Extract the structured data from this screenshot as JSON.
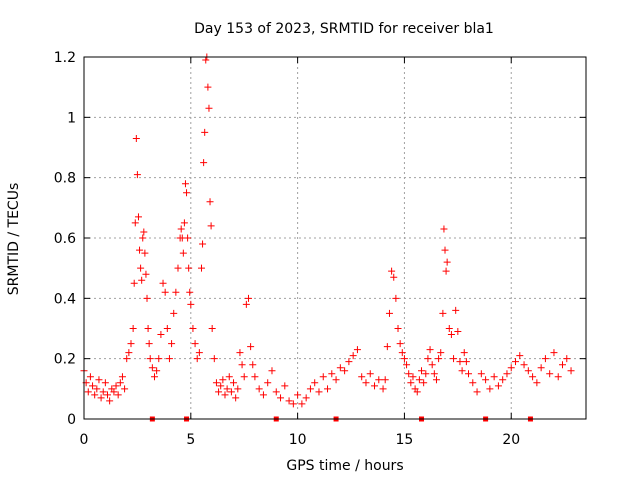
{
  "chart_data": {
    "type": "scatter",
    "title": "Day 153 of 2023, SRMTID for receiver bla1",
    "xlabel": "GPS time / hours",
    "ylabel": "SRMTID / TECUs",
    "xlim": [
      0,
      23.5
    ],
    "ylim": [
      0,
      1.2
    ],
    "xticks": [
      0,
      5,
      10,
      15,
      20
    ],
    "xtick_labels": [
      "0",
      "5",
      "10",
      "15",
      "20"
    ],
    "yticks": [
      0,
      0.2,
      0.4,
      0.6,
      0.8,
      1.0,
      1.2
    ],
    "ytick_labels": [
      "0",
      "0.2",
      "0.4",
      "0.6",
      "0.8",
      "1",
      "1.2"
    ],
    "grid": true,
    "marker": "+",
    "series": [
      {
        "name": "SRMTID",
        "color": "#ff0000",
        "x": [
          0.0,
          0.1,
          0.2,
          0.3,
          0.4,
          0.5,
          0.6,
          0.7,
          0.8,
          0.9,
          1.0,
          1.1,
          1.2,
          1.3,
          1.4,
          1.5,
          1.6,
          1.7,
          1.8,
          1.9,
          2.0,
          2.1,
          2.2,
          2.3,
          2.35,
          2.4,
          2.45,
          2.5,
          2.55,
          2.6,
          2.65,
          2.7,
          2.75,
          2.8,
          2.85,
          2.9,
          2.95,
          3.0,
          3.05,
          3.1,
          3.2,
          3.3,
          3.4,
          3.5,
          3.6,
          3.7,
          3.8,
          3.9,
          4.0,
          4.1,
          4.2,
          4.3,
          4.4,
          4.5,
          4.55,
          4.6,
          4.65,
          4.7,
          4.75,
          4.8,
          4.85,
          4.9,
          4.95,
          5.0,
          5.1,
          5.2,
          5.3,
          5.4,
          5.5,
          5.55,
          5.6,
          5.65,
          5.7,
          5.75,
          5.8,
          5.85,
          5.9,
          5.95,
          6.0,
          6.1,
          6.2,
          6.3,
          6.4,
          6.5,
          6.6,
          6.7,
          6.8,
          6.9,
          7.0,
          7.1,
          7.2,
          7.3,
          7.4,
          7.5,
          7.6,
          7.7,
          7.8,
          7.9,
          8.0,
          8.2,
          8.4,
          8.6,
          8.8,
          9.0,
          9.2,
          9.4,
          9.6,
          9.8,
          10.0,
          10.2,
          10.4,
          10.6,
          10.8,
          11.0,
          11.2,
          11.4,
          11.6,
          11.8,
          12.0,
          12.2,
          12.4,
          12.6,
          12.8,
          13.0,
          13.2,
          13.4,
          13.6,
          13.8,
          14.0,
          14.1,
          14.2,
          14.3,
          14.4,
          14.5,
          14.6,
          14.7,
          14.8,
          14.9,
          15.0,
          15.1,
          15.2,
          15.3,
          15.4,
          15.5,
          15.6,
          15.7,
          15.8,
          15.9,
          16.0,
          16.1,
          16.2,
          16.3,
          16.4,
          16.5,
          16.6,
          16.7,
          16.8,
          16.85,
          16.9,
          16.95,
          17.0,
          17.1,
          17.2,
          17.3,
          17.4,
          17.5,
          17.6,
          17.7,
          17.8,
          17.9,
          18.0,
          18.2,
          18.4,
          18.6,
          18.8,
          19.0,
          19.2,
          19.4,
          19.6,
          19.8,
          20.0,
          20.2,
          20.4,
          20.6,
          20.8,
          21.0,
          21.2,
          21.4,
          21.6,
          21.8,
          22.0,
          22.2,
          22.4,
          22.6,
          22.8
        ],
        "y": [
          0.16,
          0.12,
          0.09,
          0.14,
          0.11,
          0.08,
          0.1,
          0.13,
          0.07,
          0.09,
          0.12,
          0.08,
          0.06,
          0.1,
          0.09,
          0.11,
          0.08,
          0.12,
          0.14,
          0.1,
          0.2,
          0.22,
          0.25,
          0.3,
          0.45,
          0.65,
          0.93,
          0.81,
          0.67,
          0.56,
          0.5,
          0.46,
          0.6,
          0.62,
          0.55,
          0.48,
          0.4,
          0.3,
          0.25,
          0.2,
          0.17,
          0.14,
          0.16,
          0.2,
          0.28,
          0.45,
          0.42,
          0.3,
          0.2,
          0.25,
          0.35,
          0.42,
          0.5,
          0.6,
          0.63,
          0.6,
          0.55,
          0.65,
          0.78,
          0.75,
          0.6,
          0.5,
          0.42,
          0.38,
          0.3,
          0.25,
          0.2,
          0.22,
          0.5,
          0.58,
          0.85,
          0.95,
          1.19,
          1.2,
          1.1,
          1.03,
          0.72,
          0.64,
          0.3,
          0.2,
          0.12,
          0.09,
          0.11,
          0.13,
          0.08,
          0.1,
          0.14,
          0.09,
          0.12,
          0.07,
          0.1,
          0.22,
          0.18,
          0.14,
          0.38,
          0.4,
          0.24,
          0.18,
          0.14,
          0.1,
          0.08,
          0.12,
          0.16,
          0.09,
          0.07,
          0.11,
          0.06,
          0.05,
          0.08,
          0.05,
          0.07,
          0.1,
          0.12,
          0.09,
          0.14,
          0.1,
          0.15,
          0.13,
          0.17,
          0.16,
          0.19,
          0.21,
          0.23,
          0.14,
          0.12,
          0.15,
          0.11,
          0.13,
          0.1,
          0.13,
          0.24,
          0.35,
          0.49,
          0.47,
          0.4,
          0.3,
          0.25,
          0.22,
          0.2,
          0.18,
          0.15,
          0.12,
          0.14,
          0.1,
          0.09,
          0.13,
          0.16,
          0.12,
          0.15,
          0.2,
          0.23,
          0.18,
          0.15,
          0.13,
          0.2,
          0.22,
          0.35,
          0.63,
          0.56,
          0.49,
          0.52,
          0.3,
          0.28,
          0.2,
          0.36,
          0.29,
          0.19,
          0.16,
          0.22,
          0.19,
          0.15,
          0.12,
          0.09,
          0.15,
          0.13,
          0.1,
          0.14,
          0.11,
          0.13,
          0.15,
          0.17,
          0.19,
          0.21,
          0.18,
          0.16,
          0.14,
          0.12,
          0.17,
          0.2,
          0.15,
          0.22,
          0.14,
          0.18,
          0.2,
          0.16
        ]
      }
    ],
    "baseline_markers_x": [
      3.2,
      4.8,
      9.0,
      11.8,
      15.8,
      18.8,
      20.9
    ]
  }
}
